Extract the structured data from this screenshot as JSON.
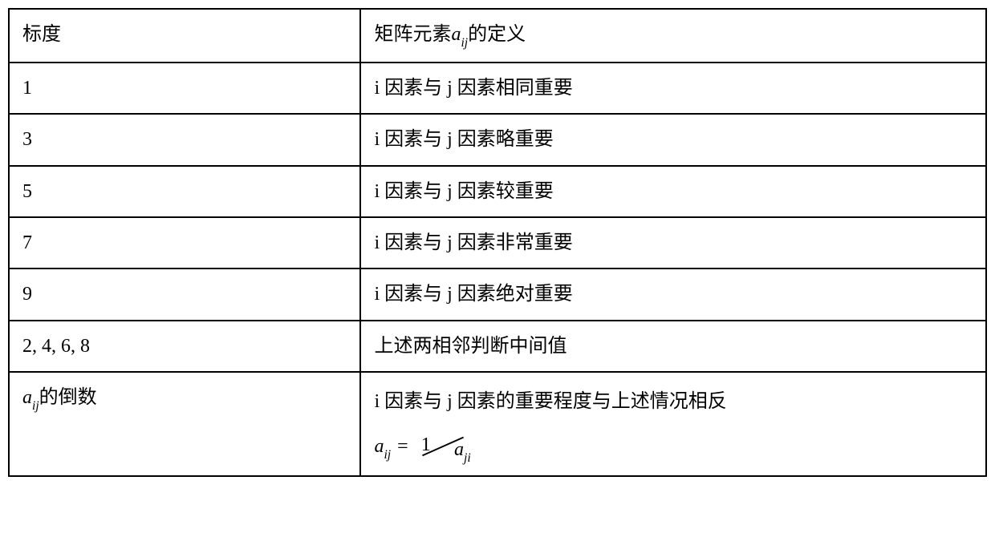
{
  "table": {
    "border_color": "#000000",
    "background_color": "#ffffff",
    "text_color": "#000000",
    "font_family": "SimSun, 宋体, serif",
    "math_font_family": "Times New Roman, serif",
    "font_size_pt": 18,
    "column_widths_percent": [
      36,
      64
    ],
    "columns": [
      "left",
      "right"
    ],
    "header": {
      "left": "标度",
      "right_prefix": "矩阵元素",
      "right_math_a": "a",
      "right_math_sub": "ij",
      "right_suffix": "的定义"
    },
    "rows": [
      {
        "left": "1",
        "right": "i 因素与 j 因素相同重要"
      },
      {
        "left": "3",
        "right": "i 因素与 j 因素略重要"
      },
      {
        "left": "5",
        "right": "i 因素与 j 因素较重要"
      },
      {
        "left": "7",
        "right": "i 因素与 j 因素非常重要"
      },
      {
        "left": "9",
        "right": "i 因素与 j 因素绝对重要"
      },
      {
        "left": "2, 4, 6, 8",
        "right": "上述两相邻判断中间值"
      }
    ],
    "last_row": {
      "left_math_a": "a",
      "left_math_sub": "ij",
      "left_suffix": "的倒数",
      "right_text": "i 因素与 j 因素的重要程度与上述情况相反",
      "formula": {
        "lhs_a": "a",
        "lhs_sub": "ij",
        "eq": "=",
        "numerator": "1",
        "denominator_a": "a",
        "denominator_sub": "ji"
      }
    }
  }
}
